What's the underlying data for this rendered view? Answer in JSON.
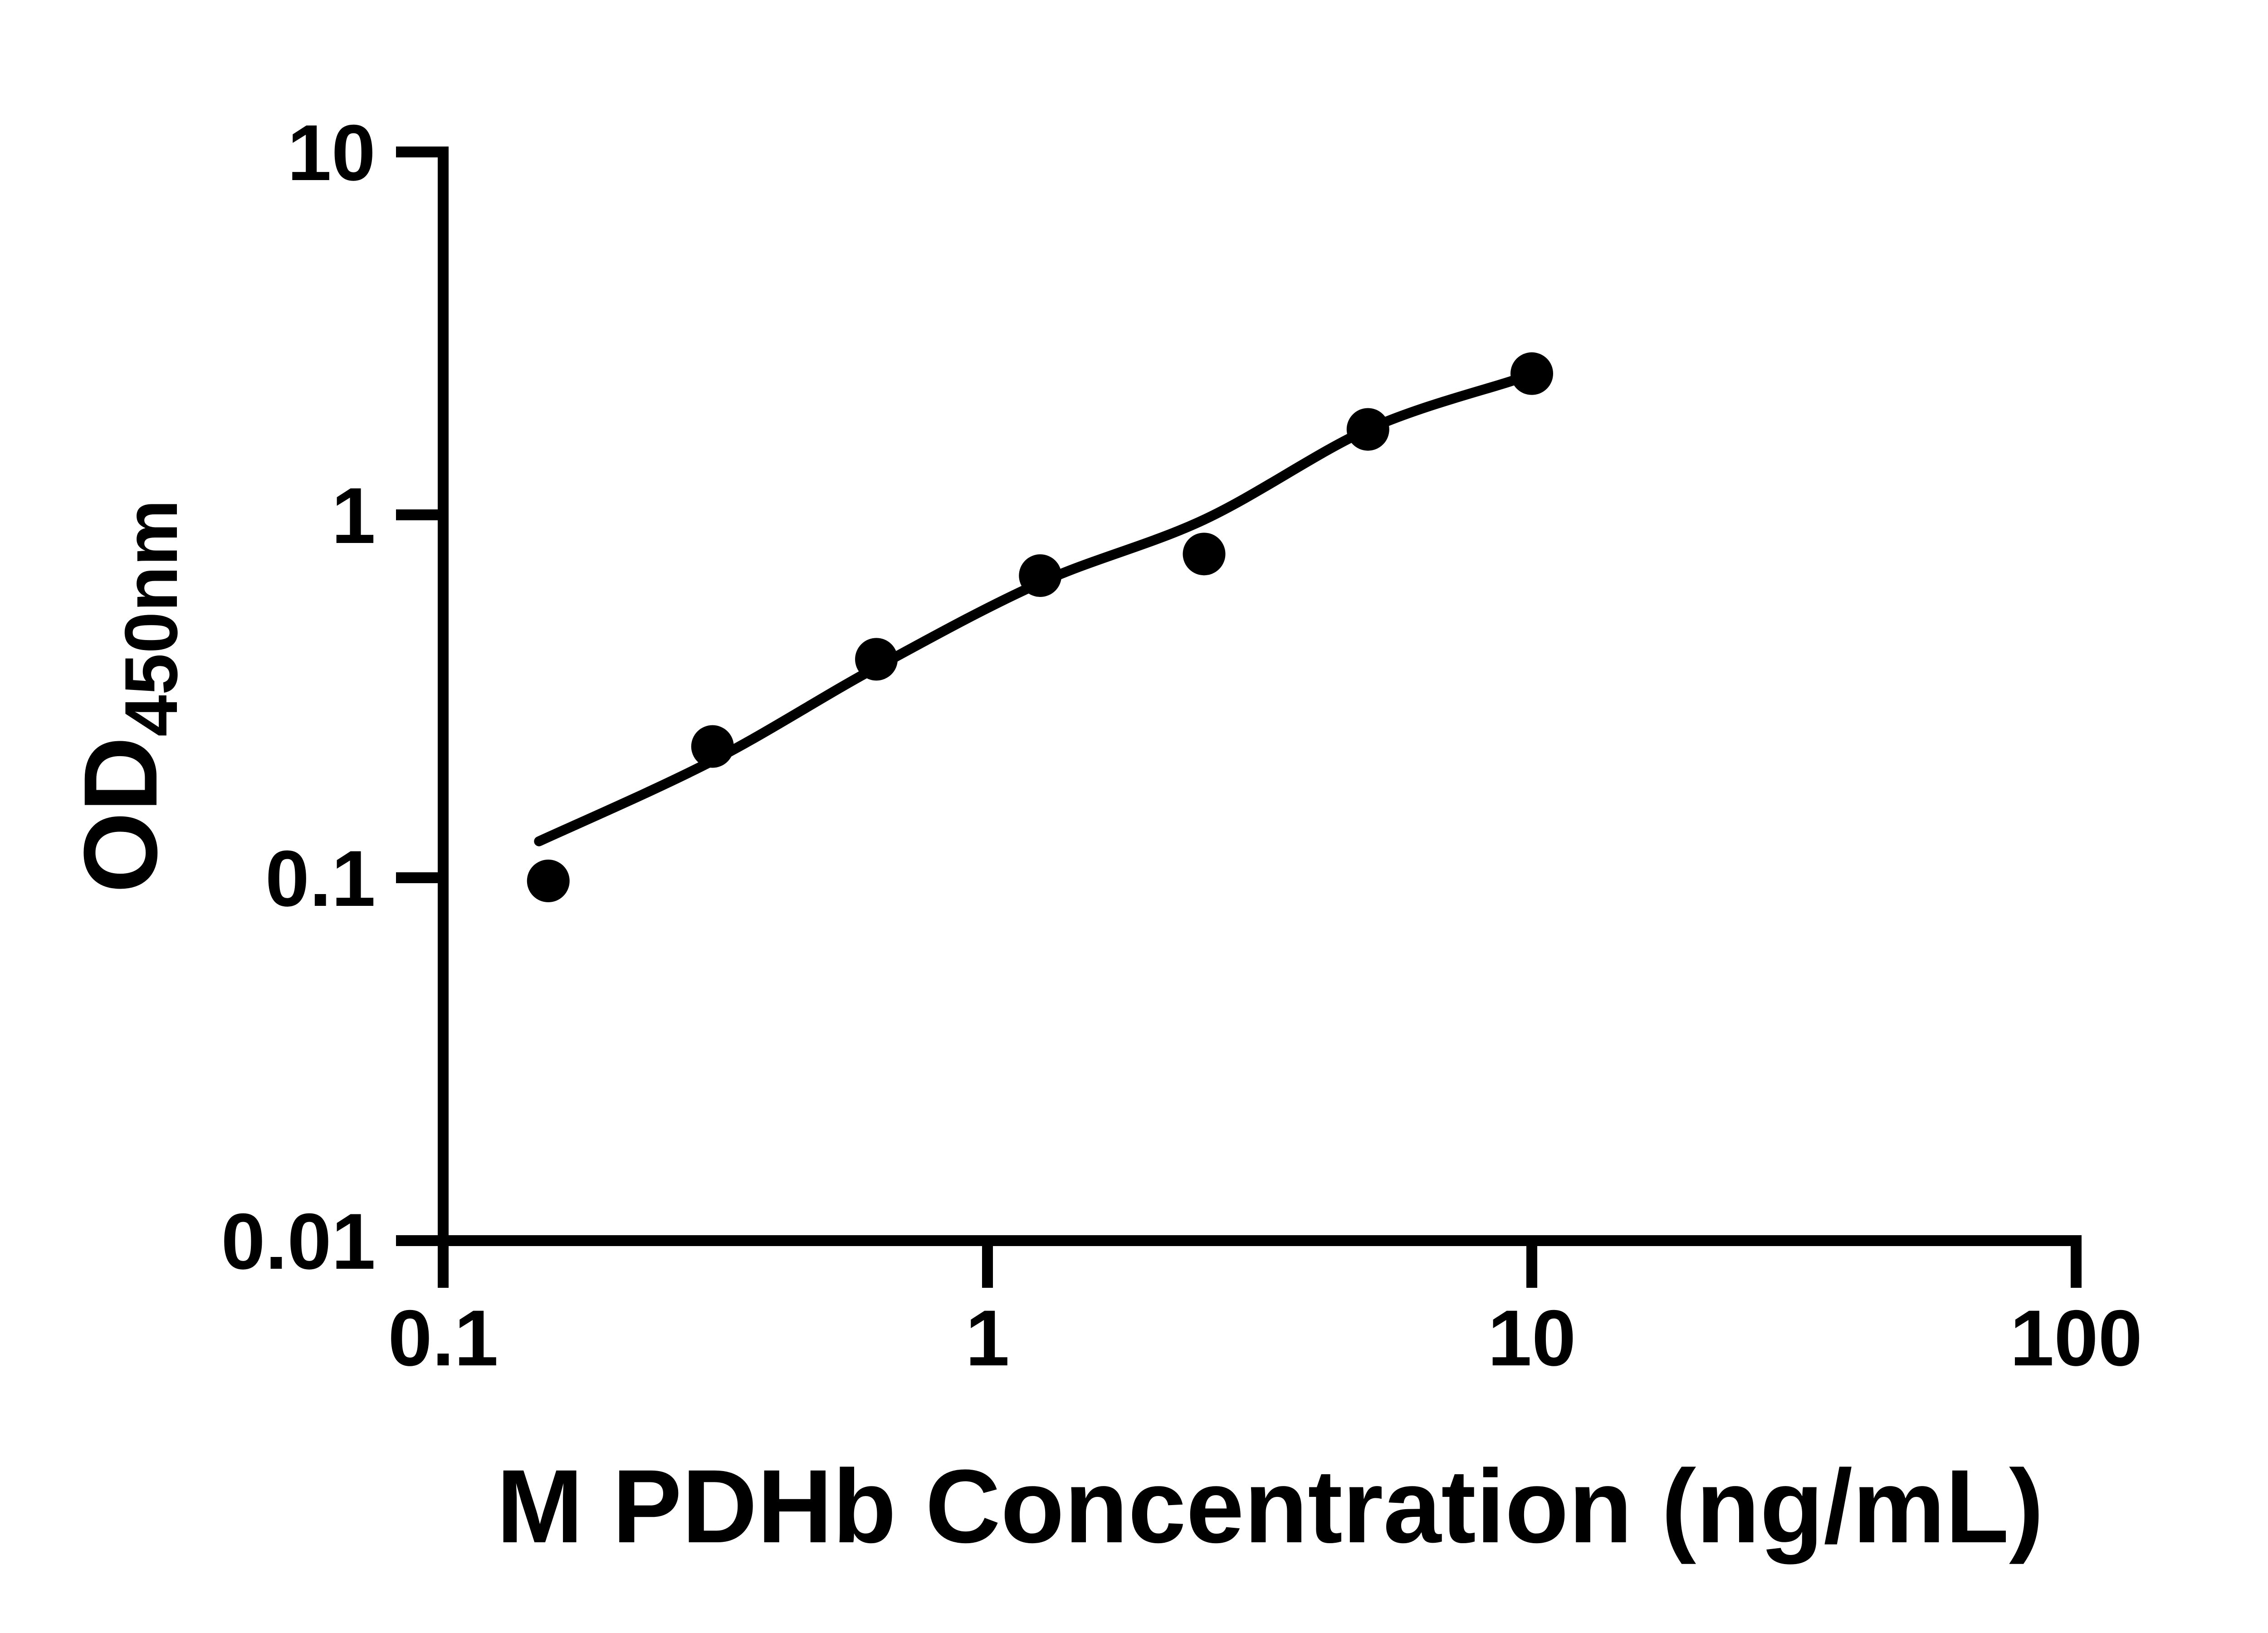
{
  "chart_data": {
    "type": "scatter",
    "title": "",
    "xlabel": "M PDHb Concentration (ng/mL)",
    "ylabel": "OD",
    "ylabel_subscript": "450nm",
    "x_scale": "log",
    "y_scale": "log",
    "xlim": [
      0.1,
      100
    ],
    "ylim": [
      0.01,
      10
    ],
    "grid": "off",
    "legend": "none",
    "x_ticks": [
      {
        "value": 0.1,
        "label": "0.1"
      },
      {
        "value": 1,
        "label": "1"
      },
      {
        "value": 10,
        "label": "10"
      },
      {
        "value": 100,
        "label": "100"
      }
    ],
    "y_ticks": [
      {
        "value": 0.01,
        "label": "0.01"
      },
      {
        "value": 0.1,
        "label": "0.1"
      },
      {
        "value": 1,
        "label": "1"
      },
      {
        "value": 10,
        "label": "10"
      }
    ],
    "series": [
      {
        "name": "standard-curve-points",
        "marker": "circle",
        "color": "#000000",
        "points": [
          {
            "x": 0.156,
            "y": 0.098
          },
          {
            "x": 0.3125,
            "y": 0.23
          },
          {
            "x": 0.625,
            "y": 0.4
          },
          {
            "x": 1.25,
            "y": 0.68
          },
          {
            "x": 2.5,
            "y": 0.78
          },
          {
            "x": 5,
            "y": 1.72
          },
          {
            "x": 10,
            "y": 2.45
          }
        ]
      }
    ],
    "trend_line": {
      "name": "fitted-curve",
      "color": "#000000",
      "points": [
        {
          "x": 0.15,
          "y": 0.126
        },
        {
          "x": 0.3125,
          "y": 0.21
        },
        {
          "x": 0.625,
          "y": 0.38
        },
        {
          "x": 1.25,
          "y": 0.65
        },
        {
          "x": 2.5,
          "y": 0.97
        },
        {
          "x": 5,
          "y": 1.72
        },
        {
          "x": 9.2,
          "y": 2.34
        }
      ]
    }
  },
  "colors": {
    "foreground": "#000000",
    "background": "#ffffff"
  }
}
